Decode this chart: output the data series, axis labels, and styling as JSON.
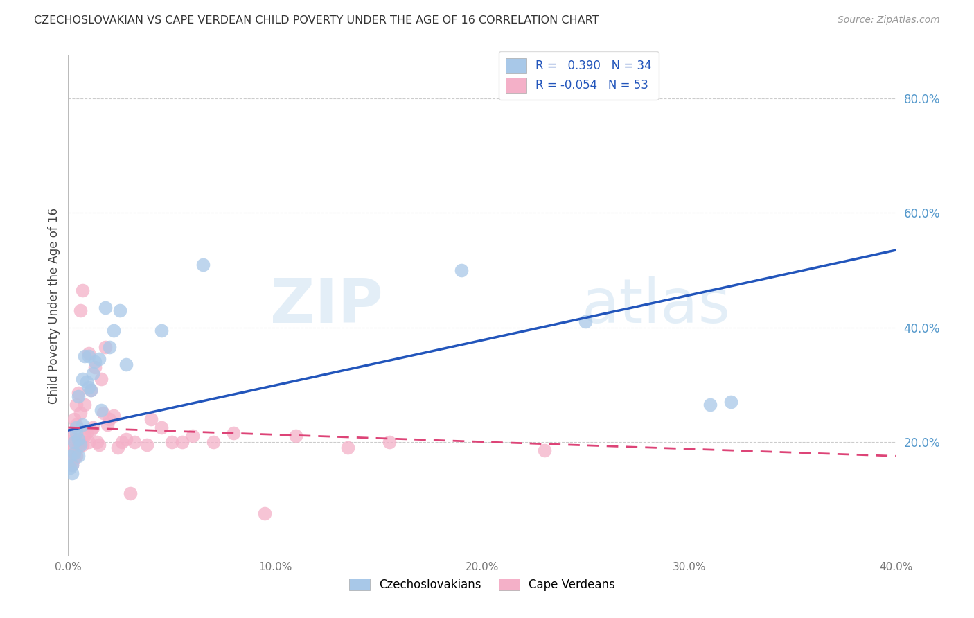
{
  "title": "CZECHOSLOVAKIAN VS CAPE VERDEAN CHILD POVERTY UNDER THE AGE OF 16 CORRELATION CHART",
  "source": "Source: ZipAtlas.com",
  "ylabel": "Child Poverty Under the Age of 16",
  "xlim": [
    0.0,
    0.4
  ],
  "ylim": [
    0.0,
    0.875
  ],
  "y_ticks": [
    0.2,
    0.4,
    0.6,
    0.8
  ],
  "x_ticks": [
    0.0,
    0.1,
    0.2,
    0.3,
    0.4
  ],
  "background_color": "#ffffff",
  "watermark_zip": "ZIP",
  "watermark_atlas": "atlas",
  "czech_color": "#a8c8e8",
  "cape_color": "#f4b0c8",
  "czech_line_color": "#2255bb",
  "cape_line_color": "#dd4477",
  "cape_line_dash": [
    6,
    4
  ],
  "czech_R": 0.39,
  "czech_N": 34,
  "cape_R": -0.054,
  "cape_N": 53,
  "czech_line_x0": 0.0,
  "czech_line_y0": 0.22,
  "czech_line_x1": 0.4,
  "czech_line_y1": 0.535,
  "cape_line_x0": 0.0,
  "cape_line_y0": 0.225,
  "cape_line_x1": 0.4,
  "cape_line_y1": 0.175,
  "czech_x": [
    0.001,
    0.001,
    0.002,
    0.002,
    0.003,
    0.003,
    0.004,
    0.004,
    0.005,
    0.005,
    0.005,
    0.006,
    0.007,
    0.007,
    0.008,
    0.009,
    0.01,
    0.01,
    0.011,
    0.012,
    0.013,
    0.015,
    0.016,
    0.018,
    0.02,
    0.022,
    0.025,
    0.028,
    0.045,
    0.065,
    0.19,
    0.25,
    0.31,
    0.32
  ],
  "czech_y": [
    0.155,
    0.175,
    0.16,
    0.145,
    0.18,
    0.2,
    0.215,
    0.225,
    0.175,
    0.205,
    0.28,
    0.195,
    0.23,
    0.31,
    0.35,
    0.305,
    0.35,
    0.295,
    0.29,
    0.32,
    0.34,
    0.345,
    0.255,
    0.435,
    0.365,
    0.395,
    0.43,
    0.335,
    0.395,
    0.51,
    0.5,
    0.41,
    0.265,
    0.27
  ],
  "cape_x": [
    0.001,
    0.001,
    0.001,
    0.002,
    0.002,
    0.003,
    0.003,
    0.003,
    0.004,
    0.004,
    0.004,
    0.005,
    0.005,
    0.006,
    0.006,
    0.006,
    0.007,
    0.007,
    0.008,
    0.008,
    0.009,
    0.01,
    0.01,
    0.011,
    0.011,
    0.012,
    0.013,
    0.014,
    0.015,
    0.016,
    0.017,
    0.018,
    0.019,
    0.02,
    0.022,
    0.024,
    0.026,
    0.028,
    0.03,
    0.032,
    0.038,
    0.04,
    0.045,
    0.05,
    0.055,
    0.06,
    0.07,
    0.08,
    0.095,
    0.11,
    0.135,
    0.155,
    0.23
  ],
  "cape_y": [
    0.195,
    0.215,
    0.165,
    0.185,
    0.16,
    0.17,
    0.205,
    0.24,
    0.175,
    0.23,
    0.265,
    0.19,
    0.285,
    0.2,
    0.25,
    0.43,
    0.465,
    0.195,
    0.265,
    0.21,
    0.215,
    0.2,
    0.355,
    0.29,
    0.22,
    0.225,
    0.33,
    0.2,
    0.195,
    0.31,
    0.25,
    0.365,
    0.23,
    0.24,
    0.245,
    0.19,
    0.2,
    0.205,
    0.11,
    0.2,
    0.195,
    0.24,
    0.225,
    0.2,
    0.2,
    0.21,
    0.2,
    0.215,
    0.075,
    0.21,
    0.19,
    0.2,
    0.185
  ]
}
